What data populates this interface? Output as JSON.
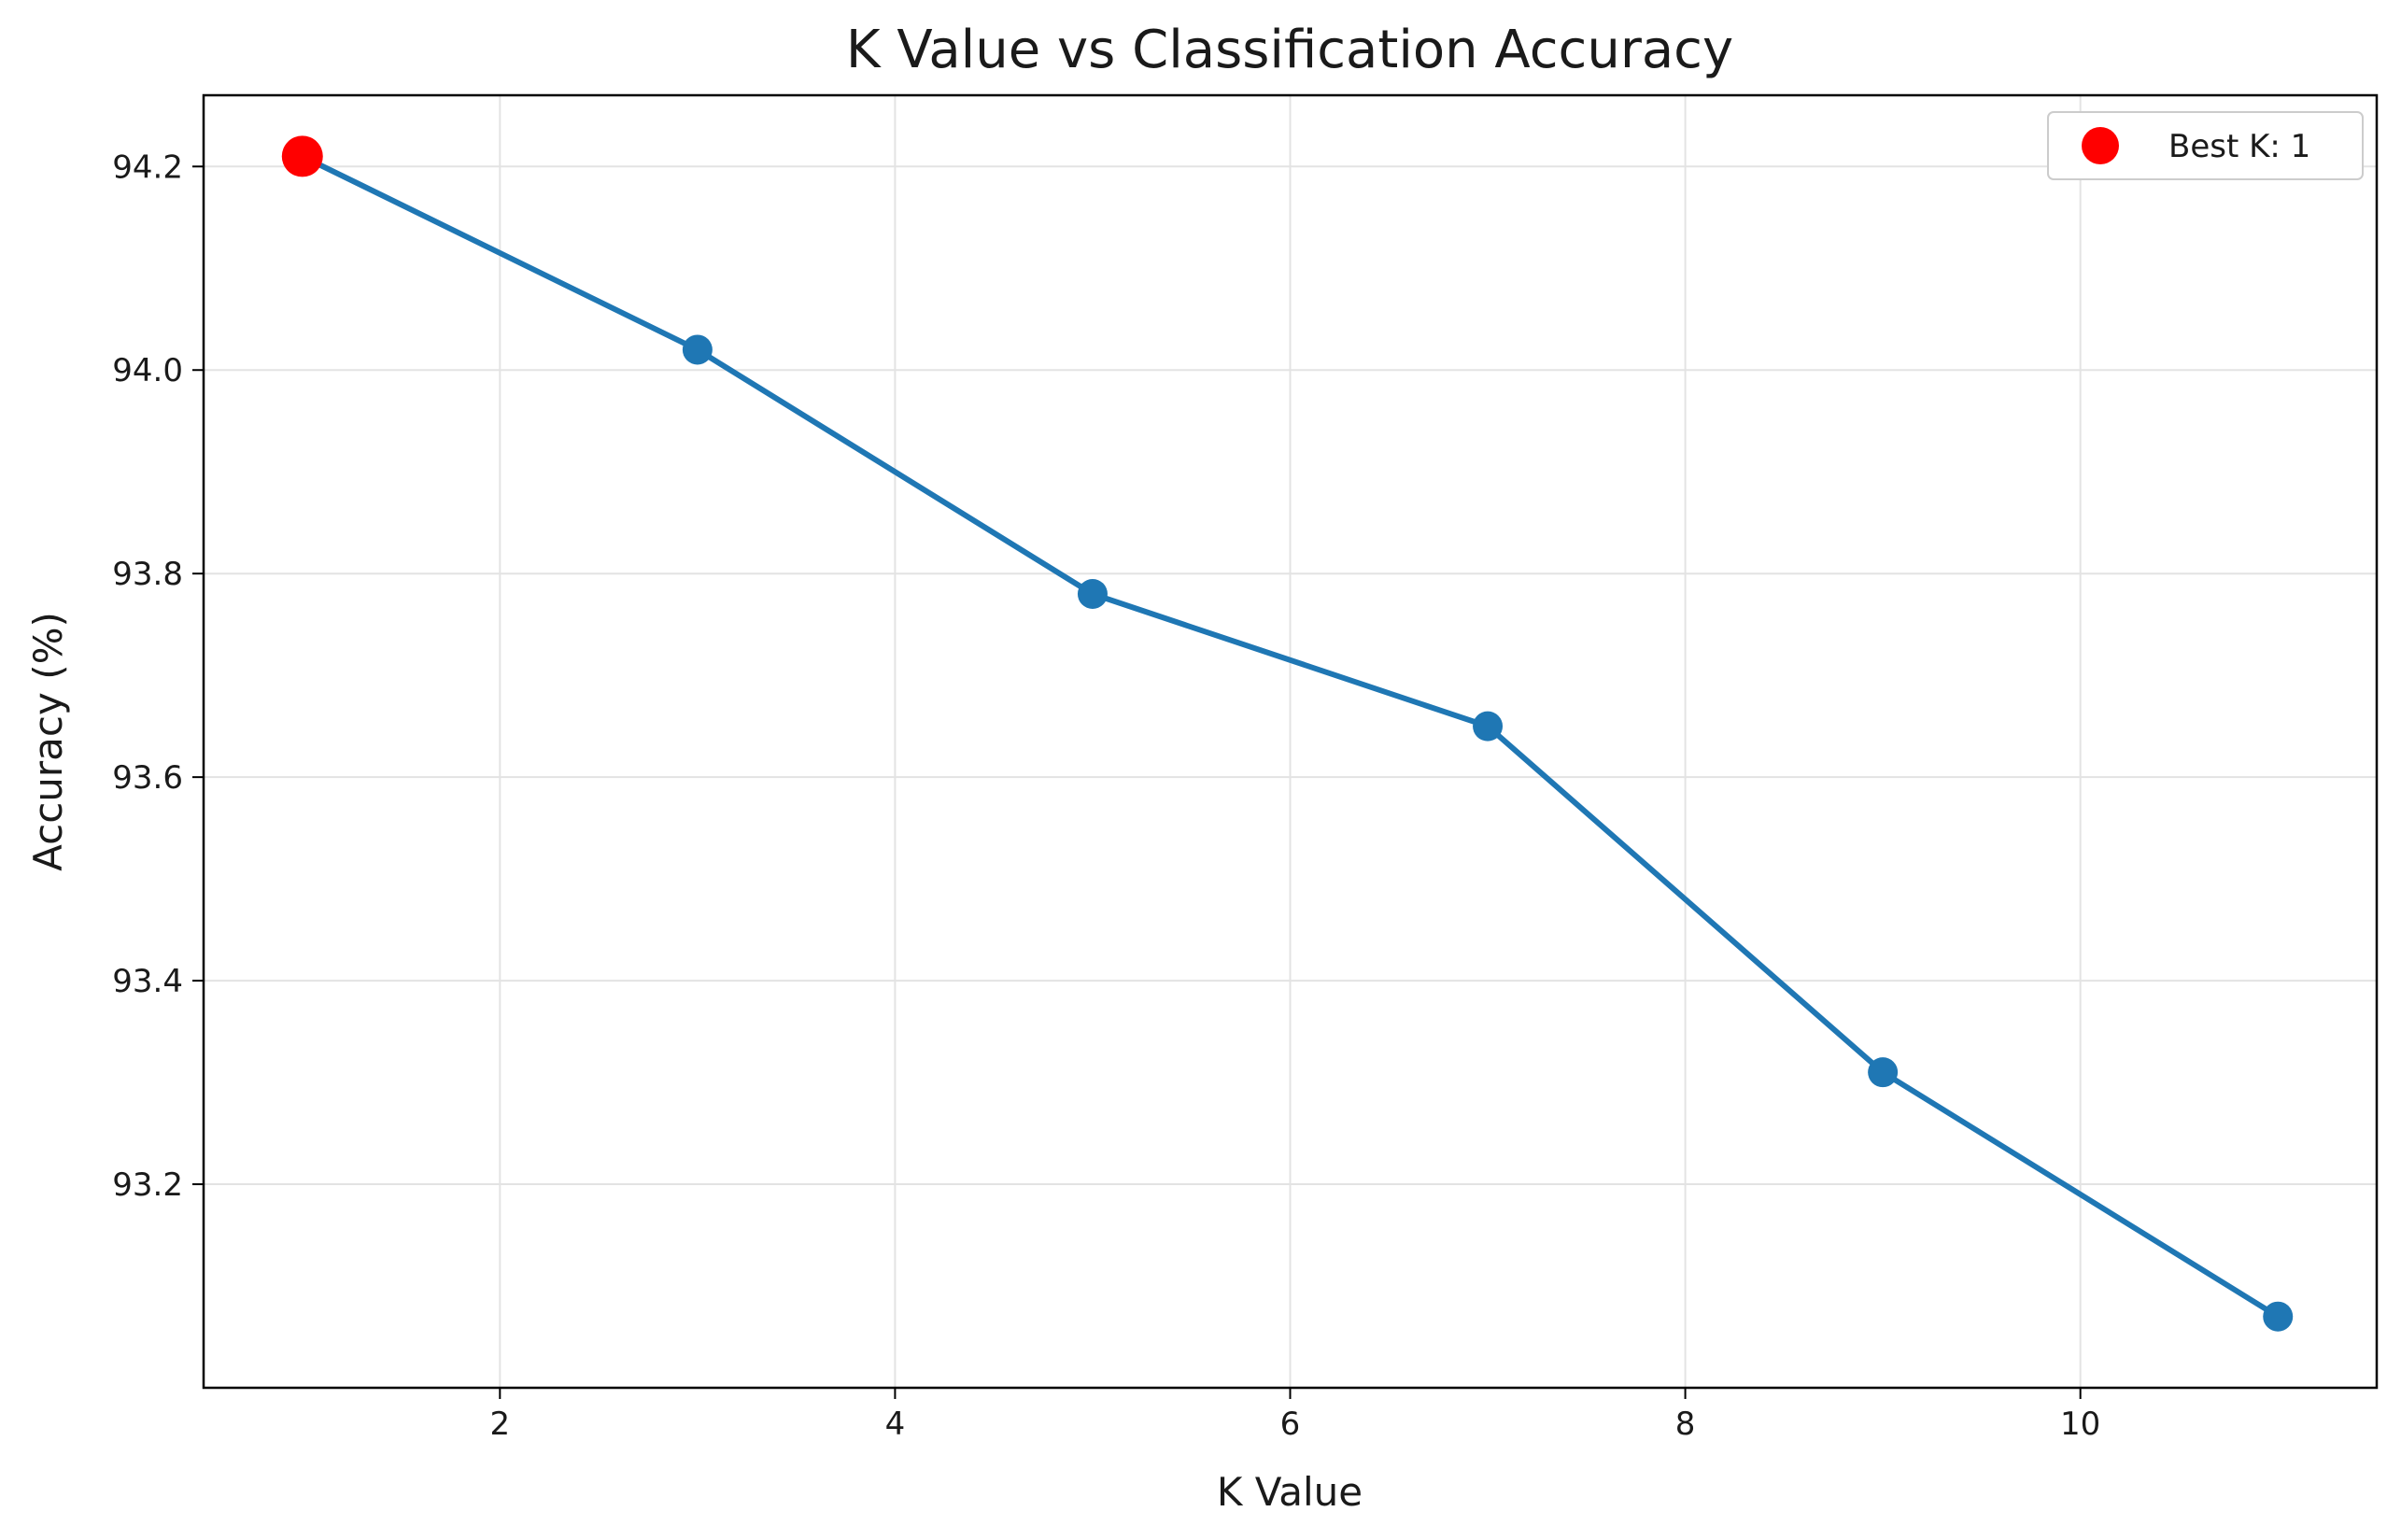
{
  "chart_data": {
    "type": "line",
    "title": "K Value vs Classification Accuracy",
    "xlabel": "K Value",
    "ylabel": "Accuracy (%)",
    "xlim": [
      0.5,
      11.5
    ],
    "ylim": [
      93.0,
      94.27
    ],
    "grid": true,
    "x_ticks": [
      2,
      4,
      6,
      8,
      10
    ],
    "y_ticks": [
      93.2,
      93.4,
      93.6,
      93.8,
      94.0,
      94.2
    ],
    "x_tick_labels": [
      "2",
      "4",
      "6",
      "8",
      "10"
    ],
    "y_tick_labels": [
      "93.2",
      "93.4",
      "93.6",
      "93.8",
      "94.0",
      "94.2"
    ],
    "series": [
      {
        "color": "#1f77b4",
        "x": [
          1,
          3,
          5,
          7,
          9,
          11
        ],
        "y": [
          94.21,
          94.02,
          93.78,
          93.65,
          93.31,
          93.07
        ]
      }
    ],
    "highlight": {
      "name": "Best K: 1",
      "x": 1,
      "y": 94.21,
      "color": "#ff0000"
    },
    "legend": {
      "position": "top-right",
      "entries": [
        "Best K: 1"
      ]
    }
  }
}
